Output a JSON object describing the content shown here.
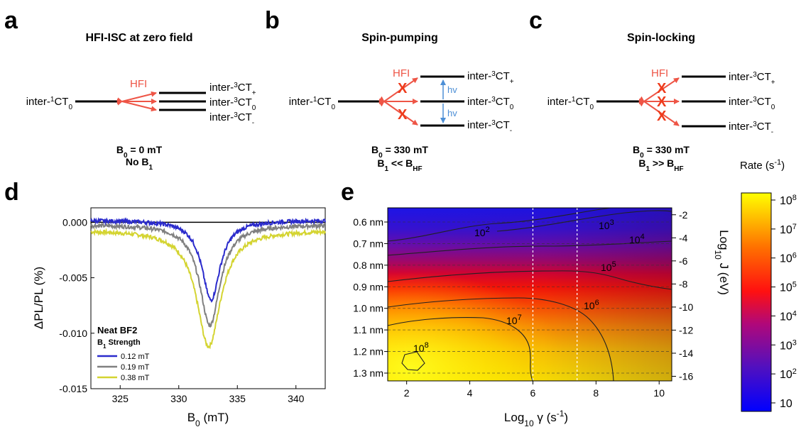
{
  "panels": {
    "a": {
      "letter": "a",
      "title": "HFI-ISC at zero field",
      "hfi_label": "HFI",
      "singlet": {
        "pre": "inter-",
        "sup": "1",
        "main": "CT",
        "sub": "0"
      },
      "triplets": [
        {
          "pre": "inter-",
          "sup": "3",
          "main": "CT",
          "sub": "+"
        },
        {
          "pre": "inter-",
          "sup": "3",
          "main": "CT",
          "sub": "0"
        },
        {
          "pre": "inter-",
          "sup": "3",
          "main": "CT",
          "sub": "-"
        }
      ],
      "field_line1": {
        "sym": "B",
        "sub": "0",
        "rest": " = 0 mT"
      },
      "field_line2": {
        "text": "No B",
        "sub": "1",
        "rest": ""
      }
    },
    "b": {
      "letter": "b",
      "title": "Spin-pumping",
      "hfi_label": "HFI",
      "hv_label": "hv",
      "block_mark": "X",
      "singlet": {
        "pre": "inter-",
        "sup": "1",
        "main": "CT",
        "sub": "0"
      },
      "triplets": [
        {
          "pre": "inter-",
          "sup": "3",
          "main": "CT",
          "sub": "+"
        },
        {
          "pre": "inter-",
          "sup": "3",
          "main": "CT",
          "sub": "0"
        },
        {
          "pre": "inter-",
          "sup": "3",
          "main": "CT",
          "sub": "-"
        }
      ],
      "field_line1": {
        "sym": "B",
        "sub": "0",
        "rest": " = 330 mT"
      },
      "field_line2": {
        "sym": "B",
        "sub": "1",
        "rest": " << B",
        "sub2": "HF"
      }
    },
    "c": {
      "letter": "c",
      "title": "Spin-locking",
      "hfi_label": "HFI",
      "block_mark": "X",
      "singlet": {
        "pre": "inter-",
        "sup": "1",
        "main": "CT",
        "sub": "0"
      },
      "triplets": [
        {
          "pre": "inter-",
          "sup": "3",
          "main": "CT",
          "sub": "+"
        },
        {
          "pre": "inter-",
          "sup": "3",
          "main": "CT",
          "sub": "0"
        },
        {
          "pre": "inter-",
          "sup": "3",
          "main": "CT",
          "sub": "-"
        }
      ],
      "field_line1": {
        "sym": "B",
        "sub": "0",
        "rest": " = 330 mT"
      },
      "field_line2": {
        "sym": "B",
        "sub": "1",
        "rest": " >> B",
        "sub2": "HF"
      }
    },
    "d": {
      "letter": "d"
    },
    "e": {
      "letter": "e"
    }
  },
  "chart_data": [
    {
      "type": "line",
      "panel": "d",
      "xlabel": {
        "sym": "B",
        "sub": "0",
        "rest": " (mT)"
      },
      "ylabel": "ΔPL/PL (%)",
      "xlim": [
        322.5,
        342.5
      ],
      "ylim": [
        -0.015,
        0.0013
      ],
      "xticks": [
        "325",
        "330",
        "335",
        "340"
      ],
      "yticks": [
        "0.000",
        "-0.005",
        "-0.010",
        "-0.015"
      ],
      "legend_title": "Neat BF2",
      "legend_subtitle": {
        "sym": "B",
        "sub": "1",
        "rest": " Strength"
      },
      "legend_position": "bottom-left",
      "series": [
        {
          "name": "0.12 mT",
          "color": "#2b2bcc",
          "baseline": 0.0002,
          "center": 332.75,
          "depth": 0.0072,
          "width": 0.95
        },
        {
          "name": "0.19 mT",
          "color": "#808080",
          "baseline": -0.0002,
          "center": 332.65,
          "depth": 0.0091,
          "width": 1.05
        },
        {
          "name": "0.38 mT",
          "color": "#d4d431",
          "baseline": -0.0007,
          "center": 332.55,
          "depth": 0.0105,
          "width": 1.25
        }
      ]
    },
    {
      "type": "heatmap",
      "panel": "e",
      "xlabel": {
        "text": "Log",
        "sub": "10",
        "rest": " γ (s",
        "sup": "-1",
        "end": ")"
      },
      "ylabel_left_ticks": [
        "0.6 nm",
        "0.7 nm",
        "0.8 nm",
        "0.9 nm",
        "1.0 nm",
        "1.1 nm",
        "1.2 nm",
        "1.3 nm"
      ],
      "ylabel_right": {
        "text": "Log",
        "sub": "10",
        "rest": " J (eV)"
      },
      "xlim": [
        1.4,
        10.4
      ],
      "ylim_right": [
        -16.4,
        -1.4
      ],
      "xticks": [
        "2",
        "4",
        "6",
        "8",
        "10"
      ],
      "yticks_right": [
        "-2",
        "-4",
        "-6",
        "-8",
        "-10",
        "-12",
        "-14",
        "-16"
      ],
      "dashed_vertical_x": [
        6.0,
        7.4
      ],
      "contour_labels": [
        {
          "base": "10",
          "exp": "2"
        },
        {
          "base": "10",
          "exp": "3"
        },
        {
          "base": "10",
          "exp": "4"
        },
        {
          "base": "10",
          "exp": "5"
        },
        {
          "base": "10",
          "exp": "6"
        },
        {
          "base": "10",
          "exp": "7"
        },
        {
          "base": "10",
          "exp": "8"
        }
      ],
      "colorbar": {
        "title": {
          "text": "Rate (s",
          "sup": "-1",
          "end": ")"
        },
        "ticks": [
          {
            "base": "10",
            "exp": "8"
          },
          {
            "base": "10",
            "exp": "7"
          },
          {
            "base": "10",
            "exp": "6"
          },
          {
            "base": "10",
            "exp": "5"
          },
          {
            "base": "10",
            "exp": "4"
          },
          {
            "base": "10",
            "exp": "3"
          },
          {
            "base": "10",
            "exp": "2"
          },
          {
            "base": "10",
            "exp": ""
          }
        ],
        "range_log": [
          1,
          8
        ],
        "colors": [
          "#0000ff",
          "#8000a0",
          "#d00030",
          "#ff0000",
          "#ff8000",
          "#ffff00"
        ]
      }
    }
  ]
}
